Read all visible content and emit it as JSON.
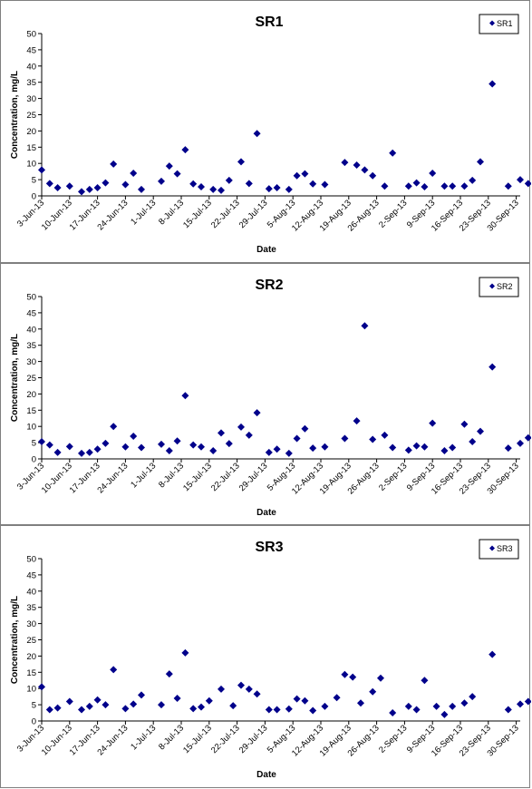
{
  "chart_data": [
    {
      "type": "scatter",
      "title": "SR1",
      "xlabel": "Date",
      "ylabel": "Concentration, mg/L",
      "legend": [
        "SR1"
      ],
      "legend_position": "top-right",
      "ylim": [
        0,
        50
      ],
      "ytick_step": 5,
      "grid": false,
      "xticks": [
        "3-Jun-13",
        "10-Jun-13",
        "17-Jun-13",
        "24-Jun-13",
        "1-Jul-13",
        "8-Jul-13",
        "15-Jul-13",
        "22-Jul-13",
        "29-Jul-13",
        "5-Aug-13",
        "12-Aug-13",
        "19-Aug-13",
        "26-Aug-13",
        "2-Sep-13",
        "9-Sep-13",
        "16-Sep-13",
        "23-Sep-13",
        "30-Sep-13"
      ],
      "xlim": [
        "2013-06-03",
        "2013-10-01"
      ],
      "series": [
        {
          "name": "SR1",
          "color": "#00008b",
          "marker": "diamond",
          "x": [
            "2013-06-03",
            "2013-06-05",
            "2013-06-07",
            "2013-06-10",
            "2013-06-13",
            "2013-06-15",
            "2013-06-17",
            "2013-06-19",
            "2013-06-21",
            "2013-06-24",
            "2013-06-26",
            "2013-06-28",
            "2013-07-03",
            "2013-07-05",
            "2013-07-07",
            "2013-07-09",
            "2013-07-11",
            "2013-07-13",
            "2013-07-16",
            "2013-07-18",
            "2013-07-20",
            "2013-07-23",
            "2013-07-25",
            "2013-07-27",
            "2013-07-30",
            "2013-08-01",
            "2013-08-04",
            "2013-08-06",
            "2013-08-08",
            "2013-08-10",
            "2013-08-13",
            "2013-08-18",
            "2013-08-21",
            "2013-08-23",
            "2013-08-25",
            "2013-08-28",
            "2013-08-30",
            "2013-09-03",
            "2013-09-05",
            "2013-09-07",
            "2013-09-09",
            "2013-09-12",
            "2013-09-14",
            "2013-09-17",
            "2013-09-19",
            "2013-09-21",
            "2013-09-24",
            "2013-09-28",
            "2013-10-01",
            "2013-10-03"
          ],
          "values": [
            8,
            3.8,
            2.5,
            3,
            1.3,
            2,
            2.5,
            4,
            9.8,
            3.5,
            7,
            2,
            4.5,
            9.2,
            6.8,
            14.2,
            3.7,
            2.8,
            2,
            1.7,
            4.8,
            10.5,
            3.8,
            19.2,
            2.2,
            2.5,
            2,
            6.2,
            6.8,
            3.7,
            3.5,
            10.3,
            9.5,
            8,
            6.2,
            3,
            13.2,
            3,
            4,
            2.8,
            7,
            3,
            3,
            3,
            4.8,
            10.5,
            34.5,
            3,
            5,
            3.8
          ]
        }
      ]
    },
    {
      "type": "scatter",
      "title": "SR2",
      "xlabel": "Date",
      "ylabel": "Concentration, mg/L",
      "legend": [
        "SR2"
      ],
      "legend_position": "top-right",
      "ylim": [
        0,
        50
      ],
      "ytick_step": 5,
      "grid": false,
      "xticks": [
        "3-Jun-13",
        "10-Jun-13",
        "17-Jun-13",
        "24-Jun-13",
        "1-Jul-13",
        "8-Jul-13",
        "15-Jul-13",
        "22-Jul-13",
        "29-Jul-13",
        "5-Aug-13",
        "12-Aug-13",
        "19-Aug-13",
        "26-Aug-13",
        "2-Sep-13",
        "9-Sep-13",
        "16-Sep-13",
        "23-Sep-13",
        "30-Sep-13"
      ],
      "xlim": [
        "2013-06-03",
        "2013-10-01"
      ],
      "series": [
        {
          "name": "SR2",
          "color": "#00008b",
          "marker": "diamond",
          "x": [
            "2013-06-03",
            "2013-06-05",
            "2013-06-07",
            "2013-06-10",
            "2013-06-13",
            "2013-06-15",
            "2013-06-17",
            "2013-06-19",
            "2013-06-21",
            "2013-06-24",
            "2013-06-26",
            "2013-06-28",
            "2013-07-03",
            "2013-07-05",
            "2013-07-07",
            "2013-07-09",
            "2013-07-11",
            "2013-07-13",
            "2013-07-16",
            "2013-07-18",
            "2013-07-20",
            "2013-07-23",
            "2013-07-25",
            "2013-07-27",
            "2013-07-30",
            "2013-08-01",
            "2013-08-04",
            "2013-08-06",
            "2013-08-08",
            "2013-08-10",
            "2013-08-13",
            "2013-08-18",
            "2013-08-21",
            "2013-08-23",
            "2013-08-25",
            "2013-08-28",
            "2013-08-30",
            "2013-09-03",
            "2013-09-05",
            "2013-09-07",
            "2013-09-09",
            "2013-09-12",
            "2013-09-14",
            "2013-09-17",
            "2013-09-19",
            "2013-09-21",
            "2013-09-24",
            "2013-09-28",
            "2013-10-01",
            "2013-10-03"
          ],
          "values": [
            5.3,
            4.3,
            2,
            3.8,
            1.7,
            2,
            3,
            4.8,
            10,
            3.7,
            7,
            3.5,
            4.5,
            2.5,
            5.5,
            19.5,
            4.3,
            3.7,
            2.5,
            8,
            4.7,
            9.8,
            7.3,
            14.2,
            2,
            3,
            1.7,
            6.3,
            9.3,
            3.3,
            3.7,
            6.3,
            11.7,
            41,
            6,
            7.3,
            3.5,
            2.7,
            4,
            3.7,
            11,
            2.5,
            3.5,
            10.7,
            5.3,
            8.5,
            28.3,
            3.3,
            4.8,
            6.5
          ]
        }
      ]
    },
    {
      "type": "scatter",
      "title": "SR3",
      "xlabel": "Date",
      "ylabel": "Concentration, mg/L",
      "legend": [
        "SR3"
      ],
      "legend_position": "top-right",
      "ylim": [
        0,
        50
      ],
      "ytick_step": 5,
      "grid": false,
      "xticks": [
        "3-Jun-13",
        "10-Jun-13",
        "17-Jun-13",
        "24-Jun-13",
        "1-Jul-13",
        "8-Jul-13",
        "15-Jul-13",
        "22-Jul-13",
        "29-Jul-13",
        "5-Aug-13",
        "12-Aug-13",
        "19-Aug-13",
        "26-Aug-13",
        "2-Sep-13",
        "9-Sep-13",
        "16-Sep-13",
        "23-Sep-13",
        "30-Sep-13"
      ],
      "xlim": [
        "2013-06-03",
        "2013-10-01"
      ],
      "series": [
        {
          "name": "SR3",
          "color": "#00008b",
          "marker": "diamond",
          "x": [
            "2013-06-03",
            "2013-06-05",
            "2013-06-07",
            "2013-06-10",
            "2013-06-13",
            "2013-06-15",
            "2013-06-17",
            "2013-06-19",
            "2013-06-21",
            "2013-06-24",
            "2013-06-26",
            "2013-06-28",
            "2013-07-03",
            "2013-07-05",
            "2013-07-07",
            "2013-07-09",
            "2013-07-11",
            "2013-07-13",
            "2013-07-15",
            "2013-07-18",
            "2013-07-21",
            "2013-07-23",
            "2013-07-25",
            "2013-07-27",
            "2013-07-30",
            "2013-08-01",
            "2013-08-04",
            "2013-08-06",
            "2013-08-08",
            "2013-08-10",
            "2013-08-13",
            "2013-08-16",
            "2013-08-18",
            "2013-08-20",
            "2013-08-22",
            "2013-08-25",
            "2013-08-27",
            "2013-08-30",
            "2013-09-03",
            "2013-09-05",
            "2013-09-07",
            "2013-09-10",
            "2013-09-12",
            "2013-09-14",
            "2013-09-17",
            "2013-09-19",
            "2013-09-24",
            "2013-09-28",
            "2013-10-01",
            "2013-10-03"
          ],
          "values": [
            10.5,
            3.5,
            4,
            6,
            3.5,
            4.5,
            6.5,
            5,
            15.8,
            3.8,
            5.2,
            8,
            5,
            14.5,
            7,
            21,
            3.8,
            4.3,
            6.2,
            9.8,
            4.7,
            11,
            9.8,
            8.3,
            3.5,
            3.5,
            3.7,
            6.8,
            6.2,
            3.2,
            4.5,
            7.2,
            14.3,
            13.5,
            5.5,
            9,
            13.2,
            2.5,
            4.5,
            3.5,
            12.5,
            4.5,
            2,
            4.5,
            5.5,
            7.5,
            20.5,
            3.5,
            5.2,
            6
          ]
        }
      ]
    }
  ]
}
